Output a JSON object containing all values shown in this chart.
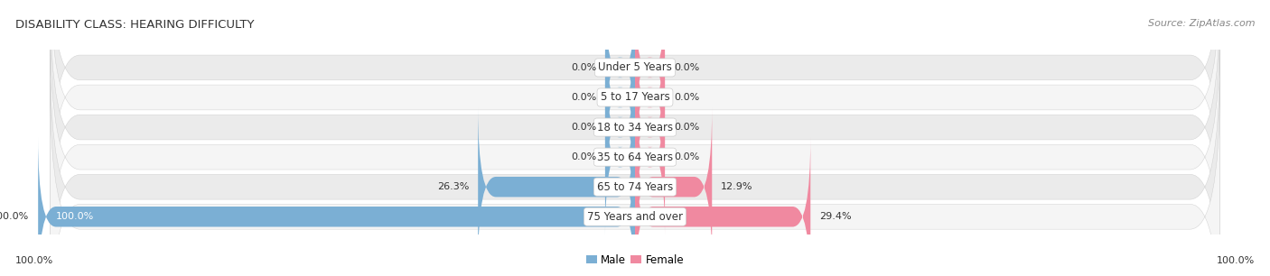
{
  "title": "DISABILITY CLASS: HEARING DIFFICULTY",
  "source": "Source: ZipAtlas.com",
  "categories": [
    "Under 5 Years",
    "5 to 17 Years",
    "18 to 34 Years",
    "35 to 64 Years",
    "65 to 74 Years",
    "75 Years and over"
  ],
  "male_values": [
    0.0,
    0.0,
    0.0,
    0.0,
    26.3,
    100.0
  ],
  "female_values": [
    0.0,
    0.0,
    0.0,
    0.0,
    12.9,
    29.4
  ],
  "male_color": "#7bafd4",
  "female_color": "#f089a0",
  "bar_bg_color_even": "#ebebeb",
  "bar_bg_color_odd": "#f5f5f5",
  "max_value": 100.0,
  "title_fontsize": 9.5,
  "label_fontsize": 8.5,
  "value_fontsize": 8,
  "legend_fontsize": 8.5,
  "source_fontsize": 8,
  "min_bar_stub": 5.0,
  "bottom_axis_label_left": "100.0%",
  "bottom_axis_label_right": "100.0%"
}
